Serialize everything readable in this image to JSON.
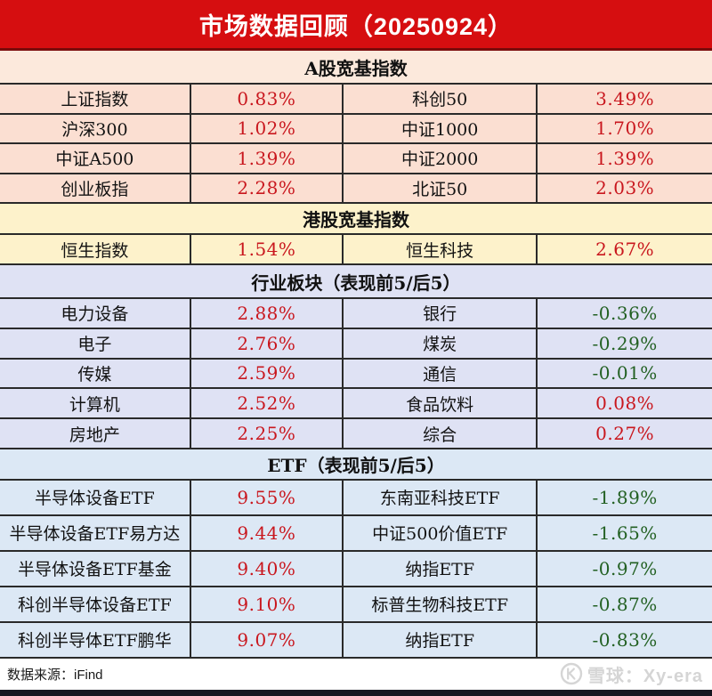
{
  "title": "市场数据回顾（20250924）",
  "colors": {
    "header_bg": "#d60e10",
    "header_border": "#7a0b0b",
    "line": "#2a2a2a",
    "up": "#c9171e",
    "down": "#226022",
    "section_a_bg": "#fce9dc",
    "row_a_bg": "#fbdfd2",
    "section_hk_bg": "#fdf2cb",
    "row_hk_bg": "#fdf2cb",
    "section_ind_bg": "#dfe2f4",
    "row_ind_bg": "#dfe2f4",
    "section_etf_bg": "#dce8f5",
    "row_etf_bg": "#dce8f5",
    "watermark": "#d5d5d5",
    "bottom_bar": "#171721"
  },
  "chart_data": [
    {
      "type": "table",
      "id": "a_share",
      "title": "A股宽基指数",
      "rows": [
        [
          "上证指数",
          "0.83%",
          "科创50",
          "3.49%"
        ],
        [
          "沪深300",
          "1.02%",
          "中证1000",
          "1.70%"
        ],
        [
          "中证A500",
          "1.39%",
          "中证2000",
          "1.39%"
        ],
        [
          "创业板指",
          "2.28%",
          "北证50",
          "2.03%"
        ]
      ]
    },
    {
      "type": "table",
      "id": "hk",
      "title": "港股宽基指数",
      "rows": [
        [
          "恒生指数",
          "1.54%",
          "恒生科技",
          "2.67%"
        ]
      ]
    },
    {
      "type": "table",
      "id": "industry",
      "title": "行业板块（表现前5/后5）",
      "rows": [
        [
          "电力设备",
          "2.88%",
          "银行",
          "-0.36%"
        ],
        [
          "电子",
          "2.76%",
          "煤炭",
          "-0.29%"
        ],
        [
          "传媒",
          "2.59%",
          "通信",
          "-0.01%"
        ],
        [
          "计算机",
          "2.52%",
          "食品饮料",
          "0.08%"
        ],
        [
          "房地产",
          "2.25%",
          "综合",
          "0.27%"
        ]
      ]
    },
    {
      "type": "table",
      "id": "etf",
      "title": "ETF（表现前5/后5）",
      "rows": [
        [
          "半导体设备ETF",
          "9.55%",
          "东南亚科技ETF",
          "-1.89%"
        ],
        [
          "半导体设备ETF易方达",
          "9.44%",
          "中证500价值ETF",
          "-1.65%"
        ],
        [
          "半导体设备ETF基金",
          "9.40%",
          "纳指ETF",
          "-0.97%"
        ],
        [
          "科创半导体设备ETF",
          "9.10%",
          "标普生物科技ETF",
          "-0.87%"
        ],
        [
          "科创半导体ETF鹏华",
          "9.07%",
          "纳指ETF",
          "-0.83%"
        ]
      ]
    }
  ],
  "footer": {
    "source": "数据来源：iFind",
    "watermark": "雪球：Xy-era",
    "logo_icon": "xueqiu-snowball-icon"
  }
}
